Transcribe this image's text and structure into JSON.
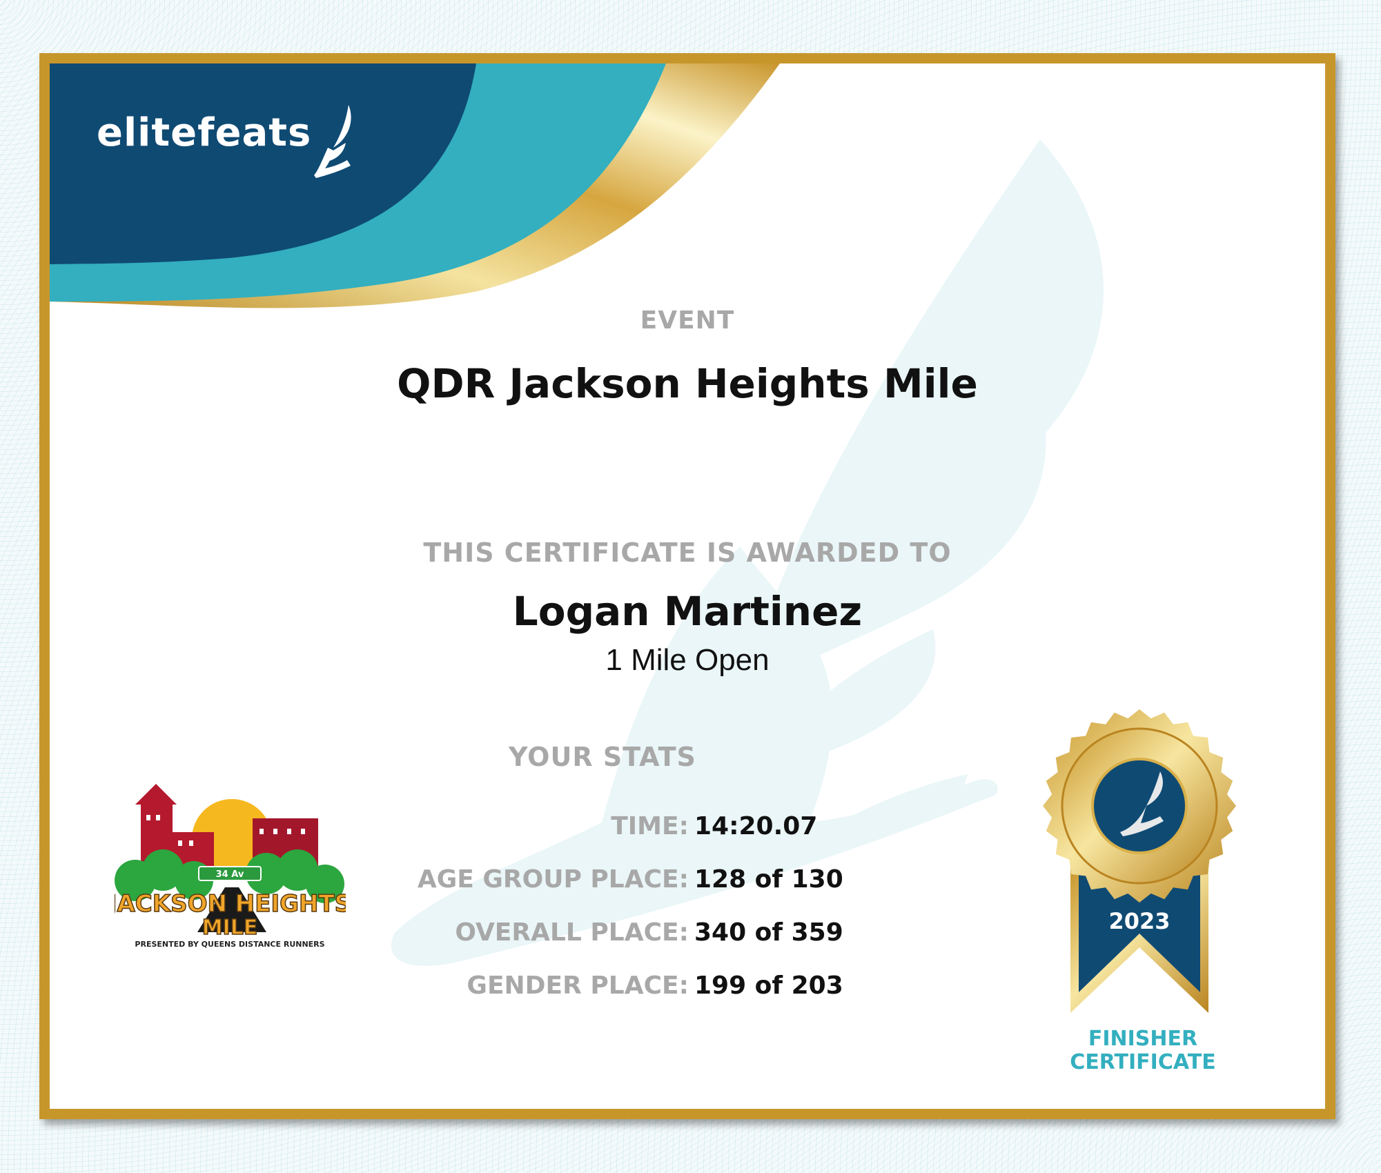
{
  "brand": {
    "name": "elitefeats",
    "logo_icon": "winged-foot-icon"
  },
  "event": {
    "label": "EVENT",
    "title": "QDR Jackson Heights Mile"
  },
  "award": {
    "label": "THIS CERTIFICATE IS AWARDED TO",
    "name": "Logan Martinez",
    "division": "1 Mile Open"
  },
  "stats": {
    "label": "YOUR STATS",
    "rows": [
      {
        "label": "TIME:",
        "value": "14:20.07"
      },
      {
        "label": "AGE GROUP PLACE:",
        "value": "128 of 130"
      },
      {
        "label": "OVERALL PLACE:",
        "value": "340 of 359"
      },
      {
        "label": "GENDER PLACE:",
        "value": "199 of 203"
      }
    ]
  },
  "race_logo": {
    "sign": "34 Av",
    "title_line1": "JACKSON HEIGHTS",
    "title_line2": "MILE",
    "subtitle": "PRESENTED BY QUEENS DISTANCE RUNNERS"
  },
  "medal": {
    "year": "2023",
    "line1": "FINISHER",
    "line2": "CERTIFICATE"
  },
  "colors": {
    "navy": "#0f4a73",
    "teal": "#33afbf",
    "gold": "#c7962b",
    "label_gray": "#a8a8a8"
  }
}
